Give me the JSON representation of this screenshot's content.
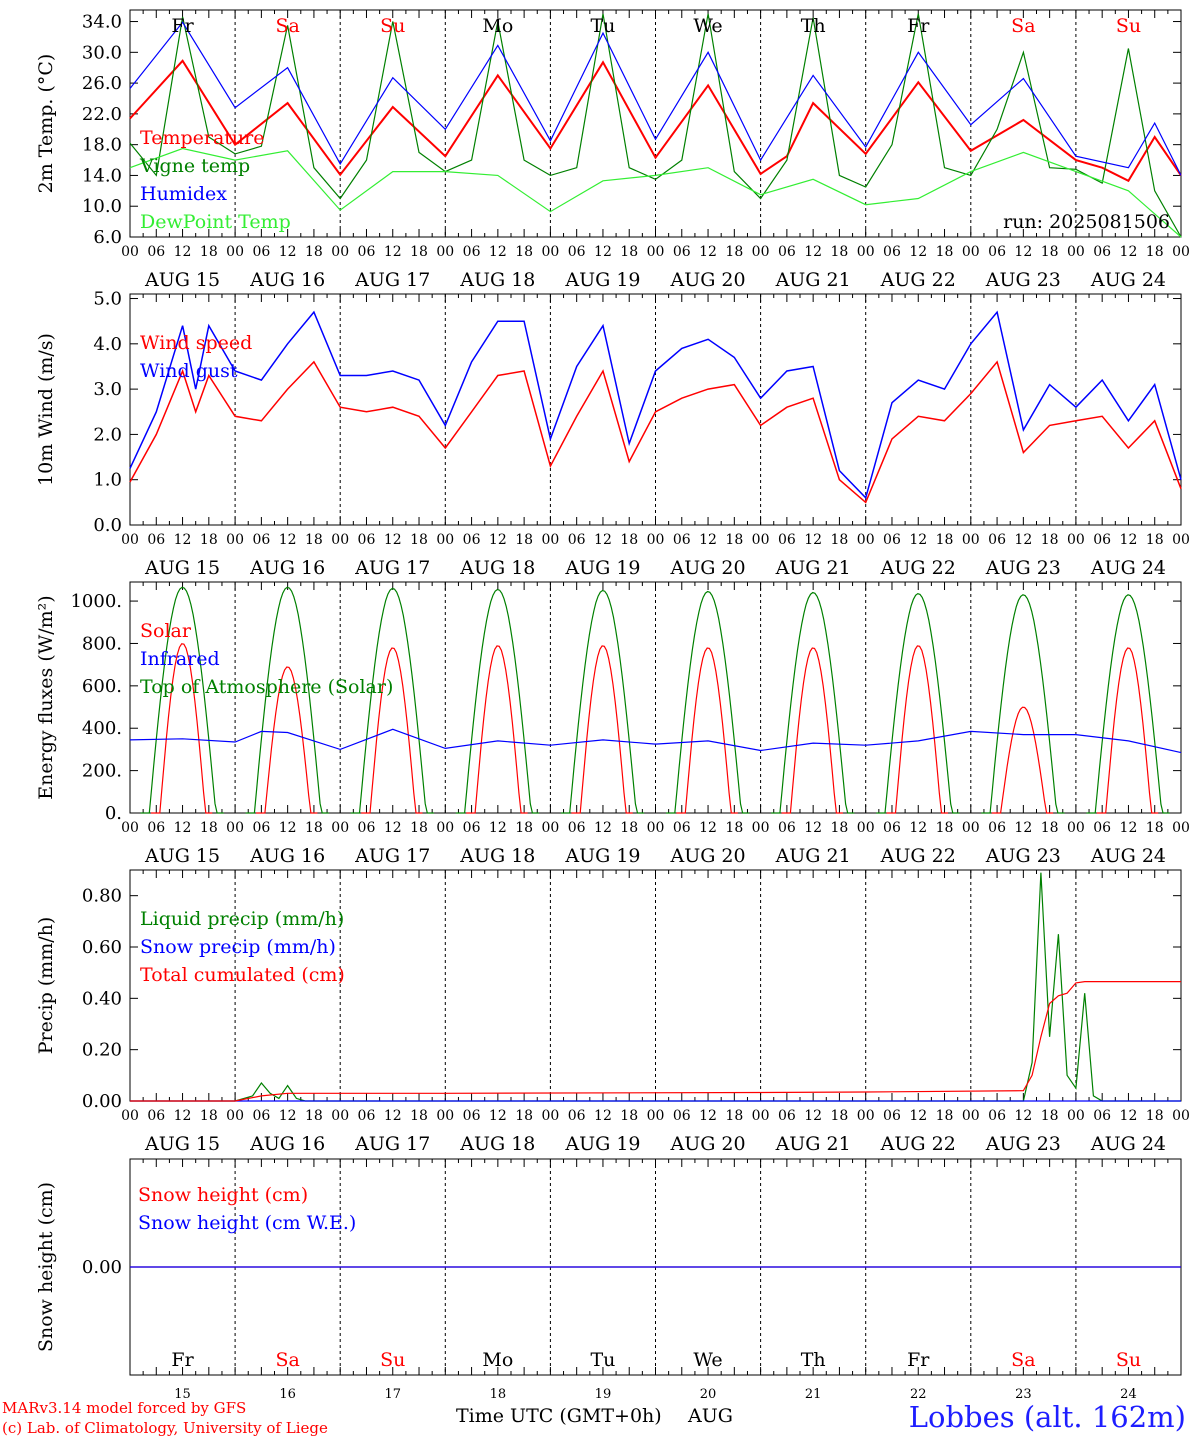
{
  "footer": {
    "credit_line1": "MARv3.14 model forced by GFS",
    "credit_line2": "(c) Lab. of Climatology, University of Liege",
    "time_axis_label": "Time UTC (GMT+0h)",
    "month": "AUG",
    "station": "Lobbes (alt. 162m)"
  },
  "colors": {
    "red": "#ff0000",
    "dark_green": "#008000",
    "blue": "#0000ff",
    "light_green": "#33ee33",
    "station_blue": "#1e1eff"
  },
  "chart_data": [
    {
      "type": "line",
      "id": "temperature",
      "ylabel": "2m Temp. (°C)",
      "yticks": [
        6.0,
        10.0,
        14.0,
        18.0,
        22.0,
        26.0,
        30.0,
        34.0
      ],
      "ytick_labels": [
        "6.0",
        "10.0",
        "14.0",
        "18.0",
        "22.0",
        "26.0",
        "30.0",
        "34.0"
      ],
      "ylim": [
        6.0,
        35.5
      ],
      "legend": [
        "Temperature",
        "Vigne temp",
        "Humidex",
        "DewPoint Temp"
      ],
      "annotation": "run: 2025081506",
      "series": [
        {
          "name": "Temperature",
          "color": "#ff0000",
          "x": [
            0,
            12,
            24,
            36,
            48,
            60,
            72,
            84,
            96,
            108,
            120,
            132,
            144,
            150,
            156,
            168,
            180,
            192,
            204,
            216,
            222,
            228,
            234,
            240
          ],
          "y": [
            21.4,
            28.9,
            18.0,
            23.4,
            14.1,
            22.9,
            16.5,
            27.0,
            17.5,
            28.7,
            16.3,
            25.7,
            14.2,
            16.5,
            23.4,
            16.8,
            26.1,
            17.2,
            21.2,
            16.0,
            15.0,
            13.3,
            19.0,
            14.0
          ]
        },
        {
          "name": "Vigne temp",
          "color": "#008000",
          "x": [
            0,
            6,
            12,
            18,
            24,
            30,
            36,
            42,
            48,
            54,
            60,
            66,
            72,
            78,
            84,
            90,
            96,
            102,
            108,
            114,
            120,
            126,
            132,
            138,
            144,
            150,
            156,
            162,
            168,
            174,
            180,
            186,
            192,
            198,
            204,
            210,
            216,
            222,
            228,
            234,
            240
          ],
          "y": [
            18.2,
            14.0,
            34.6,
            19.0,
            16.8,
            17.8,
            33.5,
            15.0,
            11.0,
            16.0,
            34.0,
            17.0,
            14.5,
            16.0,
            34.0,
            16.0,
            14.0,
            15.0,
            35.0,
            15.0,
            13.5,
            16.0,
            35.0,
            14.5,
            11.0,
            16.0,
            34.5,
            14.0,
            12.5,
            18.0,
            35.0,
            15.0,
            14.0,
            20.0,
            30.0,
            15.0,
            14.8,
            13.0,
            30.5,
            12.0,
            6.0
          ]
        },
        {
          "name": "Humidex",
          "color": "#0000ff",
          "x": [
            0,
            12,
            24,
            36,
            48,
            60,
            72,
            84,
            96,
            108,
            120,
            132,
            144,
            156,
            168,
            180,
            192,
            204,
            216,
            228,
            234,
            240
          ],
          "y": [
            25.3,
            33.9,
            22.8,
            28.0,
            15.5,
            26.7,
            20.0,
            30.9,
            18.5,
            32.5,
            18.7,
            30.0,
            16.0,
            27.0,
            17.7,
            30.0,
            20.6,
            26.6,
            16.5,
            15.0,
            20.8,
            14.0
          ]
        },
        {
          "name": "DewPoint Temp",
          "color": "#33ee33",
          "x": [
            0,
            12,
            24,
            36,
            48,
            60,
            72,
            84,
            96,
            108,
            120,
            132,
            144,
            156,
            168,
            180,
            192,
            204,
            216,
            228,
            240
          ],
          "y": [
            15.0,
            17.5,
            16.0,
            17.2,
            9.5,
            14.5,
            14.5,
            14.0,
            9.3,
            13.3,
            14.0,
            15.0,
            11.5,
            13.5,
            10.2,
            11.0,
            14.5,
            17.0,
            14.5,
            12.0,
            6.0
          ]
        }
      ]
    },
    {
      "type": "line",
      "id": "wind",
      "ylabel": "10m Wind (m/s)",
      "yticks": [
        0.0,
        1.0,
        2.0,
        3.0,
        4.0,
        5.0
      ],
      "ytick_labels": [
        "0.0",
        "1.0",
        "2.0",
        "3.0",
        "4.0",
        "5.0"
      ],
      "ylim": [
        0.0,
        5.1
      ],
      "legend": [
        "Wind speed",
        "Wind gust"
      ],
      "series": [
        {
          "name": "Wind speed",
          "color": "#ff0000",
          "x": [
            0,
            6,
            12,
            15,
            18,
            24,
            30,
            36,
            42,
            48,
            54,
            60,
            66,
            72,
            78,
            84,
            90,
            96,
            102,
            108,
            114,
            120,
            126,
            132,
            138,
            144,
            150,
            156,
            162,
            168,
            174,
            180,
            186,
            192,
            198,
            204,
            210,
            216,
            222,
            228,
            234,
            240
          ],
          "y": [
            0.95,
            2.0,
            3.4,
            2.5,
            3.3,
            2.4,
            2.3,
            3.0,
            3.6,
            2.6,
            2.5,
            2.6,
            2.4,
            1.7,
            2.5,
            3.3,
            3.4,
            1.3,
            2.4,
            3.4,
            1.4,
            2.5,
            2.8,
            3.0,
            3.1,
            2.2,
            2.6,
            2.8,
            1.0,
            0.5,
            1.9,
            2.4,
            2.3,
            2.9,
            3.6,
            1.6,
            2.2,
            2.3,
            2.4,
            1.7,
            2.3,
            0.8
          ]
        },
        {
          "name": "Wind gust",
          "color": "#0000ff",
          "x": [
            0,
            6,
            12,
            15,
            18,
            24,
            30,
            36,
            42,
            48,
            54,
            60,
            66,
            72,
            78,
            84,
            90,
            96,
            102,
            108,
            114,
            120,
            126,
            132,
            138,
            144,
            150,
            156,
            162,
            168,
            174,
            180,
            186,
            192,
            198,
            204,
            210,
            216,
            222,
            228,
            234,
            240
          ],
          "y": [
            1.25,
            2.5,
            4.4,
            3.0,
            4.4,
            3.4,
            3.2,
            4.0,
            4.7,
            3.3,
            3.3,
            3.4,
            3.2,
            2.2,
            3.6,
            4.5,
            4.5,
            1.9,
            3.5,
            4.4,
            1.8,
            3.4,
            3.9,
            4.1,
            3.7,
            2.8,
            3.4,
            3.5,
            1.2,
            0.6,
            2.7,
            3.2,
            3.0,
            4.0,
            4.7,
            2.1,
            3.1,
            2.6,
            3.2,
            2.3,
            3.1,
            1.0
          ]
        }
      ]
    },
    {
      "type": "line",
      "id": "energy",
      "ylabel": "Energy fluxes (W/m²)",
      "yticks": [
        0,
        200,
        400,
        600,
        800,
        1000
      ],
      "ytick_labels": [
        "0.",
        "200.",
        "400.",
        "600.",
        "800.",
        "1000."
      ],
      "ylim": [
        0,
        1090
      ],
      "legend": [
        "Solar",
        "Infrared",
        "Top of Atmosphere (Solar)"
      ],
      "daily_peaks": {
        "top_of_atmosphere": [
          1065,
          1065,
          1060,
          1055,
          1050,
          1045,
          1040,
          1035,
          1030,
          1030
        ],
        "solar": [
          800,
          690,
          780,
          790,
          790,
          780,
          780,
          790,
          500,
          780
        ]
      },
      "series": [
        {
          "name": "Infrared",
          "color": "#0000ff",
          "x": [
            0,
            12,
            24,
            30,
            36,
            48,
            60,
            72,
            84,
            96,
            108,
            120,
            132,
            144,
            156,
            168,
            180,
            192,
            204,
            216,
            228,
            240
          ],
          "y": [
            345,
            350,
            335,
            385,
            380,
            300,
            395,
            305,
            340,
            320,
            345,
            325,
            340,
            295,
            330,
            320,
            340,
            385,
            370,
            370,
            340,
            285
          ]
        }
      ]
    },
    {
      "type": "line",
      "id": "precip",
      "ylabel": "Precip (mm/h)",
      "yticks": [
        0.0,
        0.2,
        0.4,
        0.6,
        0.8
      ],
      "ytick_labels": [
        "0.00",
        "0.20",
        "0.40",
        "0.60",
        "0.80"
      ],
      "ylim": [
        0.0,
        0.9
      ],
      "legend": [
        "Liquid precip (mm/h)",
        "Snow precip (mm/h)",
        "Total cumulated (cm)"
      ],
      "series": [
        {
          "name": "Liquid precip (mm/h)",
          "color": "#008000",
          "x": [
            0,
            24,
            26,
            28,
            30,
            32,
            34,
            36,
            38,
            40,
            42,
            44,
            46,
            48,
            72,
            204,
            206,
            208,
            210,
            212,
            214,
            216,
            218,
            220,
            222,
            224,
            240
          ],
          "y": [
            0,
            0,
            0.01,
            0.02,
            0.07,
            0.03,
            0.01,
            0.06,
            0.01,
            0,
            0,
            0,
            0,
            0,
            0,
            0,
            0.15,
            0.89,
            0.25,
            0.65,
            0.1,
            0.05,
            0.42,
            0.02,
            0,
            0,
            0
          ]
        },
        {
          "name": "Snow precip (mm/h)",
          "color": "#0000ff",
          "x": [
            0,
            240
          ],
          "y": [
            0,
            0
          ]
        },
        {
          "name": "Total cumulated (cm)",
          "color": "#ff0000",
          "x": [
            0,
            24,
            30,
            36,
            72,
            144,
            168,
            204,
            206,
            208,
            210,
            212,
            214,
            216,
            218,
            240
          ],
          "y": [
            0,
            0,
            0.02,
            0.03,
            0.03,
            0.033,
            0.035,
            0.04,
            0.1,
            0.25,
            0.38,
            0.41,
            0.42,
            0.46,
            0.465,
            0.465
          ]
        }
      ]
    },
    {
      "type": "line",
      "id": "snow",
      "ylabel": "Snow height (cm)",
      "yticks": [
        0.0
      ],
      "ytick_labels": [
        "0.00"
      ],
      "ylim": [
        -1,
        1
      ],
      "legend": [
        "Snow height (cm)",
        "Snow height (cm W.E.)"
      ],
      "series": [
        {
          "name": "Snow height (cm)",
          "color": "#ff0000",
          "x": [
            0,
            240
          ],
          "y": [
            0,
            0
          ]
        },
        {
          "name": "Snow height (cm W.E.)",
          "color": "#0000ff",
          "x": [
            0,
            240
          ],
          "y": [
            0,
            0
          ]
        }
      ]
    }
  ],
  "time_axis": {
    "hour_labels": [
      "00",
      "06",
      "12",
      "18"
    ],
    "final_hour_label": "00",
    "dates": [
      "AUG 15",
      "AUG 16",
      "AUG 17",
      "AUG 18",
      "AUG 19",
      "AUG 20",
      "AUG 21",
      "AUG 22",
      "AUG 23",
      "AUG 24"
    ],
    "day_numbers": [
      "15",
      "16",
      "17",
      "18",
      "19",
      "20",
      "21",
      "22",
      "23",
      "24"
    ],
    "weekdays": [
      "Fr",
      "Sa",
      "Su",
      "Mo",
      "Tu",
      "We",
      "Th",
      "Fr",
      "Sa",
      "Su"
    ],
    "weekend_flags": [
      false,
      true,
      true,
      false,
      false,
      false,
      false,
      false,
      true,
      true
    ]
  }
}
